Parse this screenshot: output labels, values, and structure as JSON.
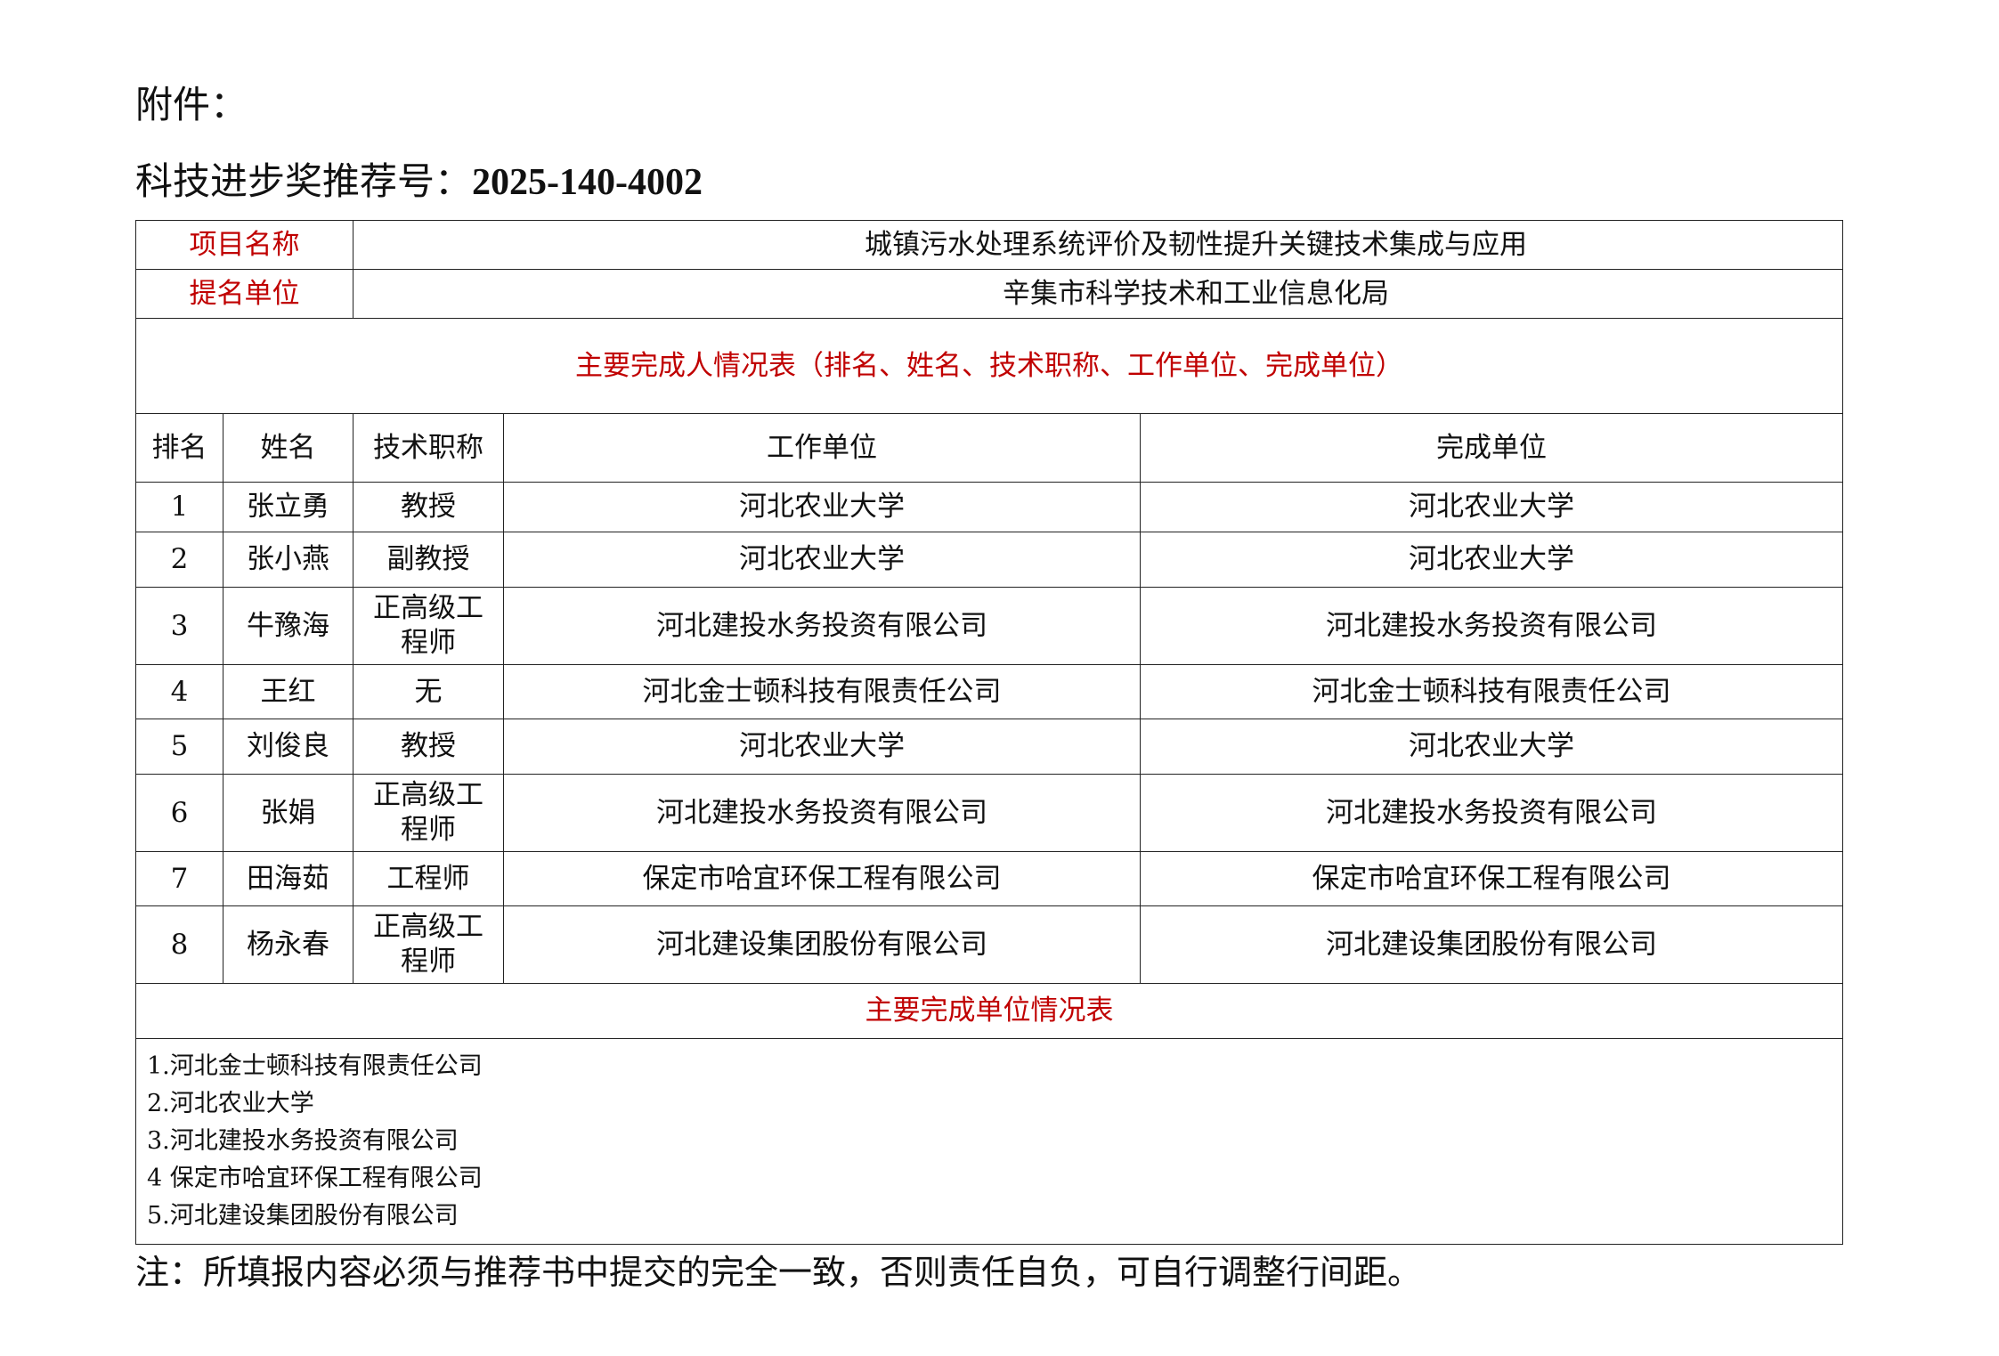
{
  "header": {
    "attachment": "附件：",
    "rec_label": "科技进步奖推荐号：",
    "rec_number": "2025-140-4002"
  },
  "project": {
    "name_label": "项目名称",
    "name": "城镇污水处理系统评价及韧性提升关键技术集成与应用",
    "nominator_label": "提名单位",
    "nominator": "辛集市科学技术和工业信息化局"
  },
  "persons_title": "主要完成人情况表（排名、姓名、技术职称、工作单位、完成单位）",
  "columns": [
    "排名",
    "姓名",
    "技术职称",
    "工作单位",
    "完成单位"
  ],
  "persons": [
    [
      "1",
      "张立勇",
      "教授",
      "河北农业大学",
      "河北农业大学"
    ],
    [
      "2",
      "张小燕",
      "副教授",
      "河北农业大学",
      "河北农业大学"
    ],
    [
      "3",
      "牛豫海",
      "正高级工程师",
      "河北建投水务投资有限公司",
      "河北建投水务投资有限公司"
    ],
    [
      "4",
      "王红",
      "无",
      "河北金士顿科技有限责任公司",
      "河北金士顿科技有限责任公司"
    ],
    [
      "5",
      "刘俊良",
      "教授",
      "河北农业大学",
      "河北农业大学"
    ],
    [
      "6",
      "张娟",
      "正高级工程师",
      "河北建投水务投资有限公司",
      "河北建投水务投资有限公司"
    ],
    [
      "7",
      "田海茹",
      "工程师",
      "保定市哈宜环保工程有限公司",
      "保定市哈宜环保工程有限公司"
    ],
    [
      "8",
      "杨永春",
      "正高级工程师",
      "河北建设集团股份有限公司",
      "河北建设集团股份有限公司"
    ]
  ],
  "units_title": "主要完成单位情况表",
  "units": [
    "1.河北金士顿科技有限责任公司",
    "2.河北农业大学",
    "3.河北建投水务投资有限公司",
    "4 保定市哈宜环保工程有限公司",
    "5.河北建设集团股份有限公司"
  ],
  "note": "注：所填报内容必须与推荐书中提交的完全一致，否则责任自负，可自行调整行间距。",
  "colors": {
    "label_red": "#c00000"
  }
}
